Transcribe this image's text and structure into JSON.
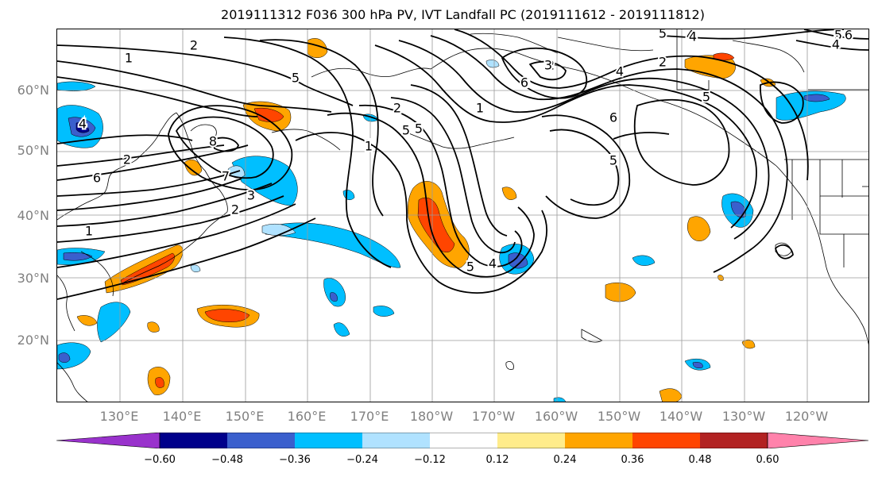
{
  "title": "2019111312 F036 300 hPa PV, IVT Landfall PC (2019111612 - 2019111812)",
  "lat_labels": [
    "60°N",
    "50°N",
    "40°N",
    "30°N",
    "20°N"
  ],
  "lon_labels": [
    "130°E",
    "140°E",
    "150°E",
    "160°E",
    "170°E",
    "180°W",
    "170°W",
    "160°W",
    "150°W",
    "140°W",
    "130°W",
    "120°W"
  ],
  "colorbar": {
    "ticks": [
      "−0.60",
      "−0.48",
      "−0.36",
      "−0.24",
      "−0.12",
      "0.12",
      "0.24",
      "0.36",
      "0.48",
      "0.60"
    ],
    "colors": [
      "#9932cc",
      "#00008b",
      "#3a5fcd",
      "#00bfff",
      "#b0e2ff",
      "#ffffff",
      "#ffec8b",
      "#ffa500",
      "#ff4500",
      "#b22222",
      "#ff82ab"
    ]
  },
  "contour_labels": [
    "2",
    "1",
    "5",
    "5",
    "4",
    "6",
    "1",
    "2",
    "6",
    "2",
    "4",
    "5",
    "8",
    "1",
    "6",
    "5",
    "7",
    "3",
    "2",
    "2",
    "6",
    "4",
    "1",
    "5",
    "4",
    "6",
    "5",
    "3",
    "4",
    "2",
    "1",
    "1",
    "5",
    "5",
    "4"
  ]
}
